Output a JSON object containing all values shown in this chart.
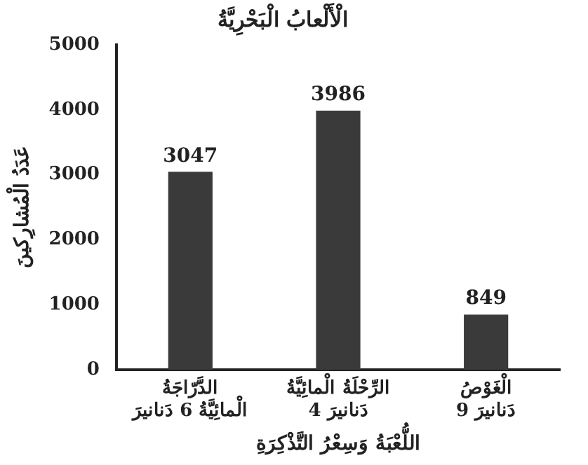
{
  "chart_data": {
    "type": "bar",
    "title": "الْأَلْعابُ الْبَحْرِيَّةُ",
    "xlabel": "اللُّعْبَةُ وَسِعْرُ التَّذْكِرَةِ",
    "ylabel": "عَدَدُ الْمُشارِكينَ",
    "categories": [
      "الدَّرّاجَةُ\nالْمائِيَّةُ 6 دَنانيرَ",
      "الرِّحْلَةُ الْمائِيَّةُ\n4 دَنانيرَ",
      "الْغَوْصُ\n9 دَنانيرَ"
    ],
    "values": [
      3047,
      3986,
      849
    ],
    "color": "#3a3a3a",
    "ylim": [
      0,
      5000
    ],
    "yticks": [
      0,
      1000,
      2000,
      3000,
      4000,
      5000
    ],
    "grid": false,
    "data_labels": true
  }
}
